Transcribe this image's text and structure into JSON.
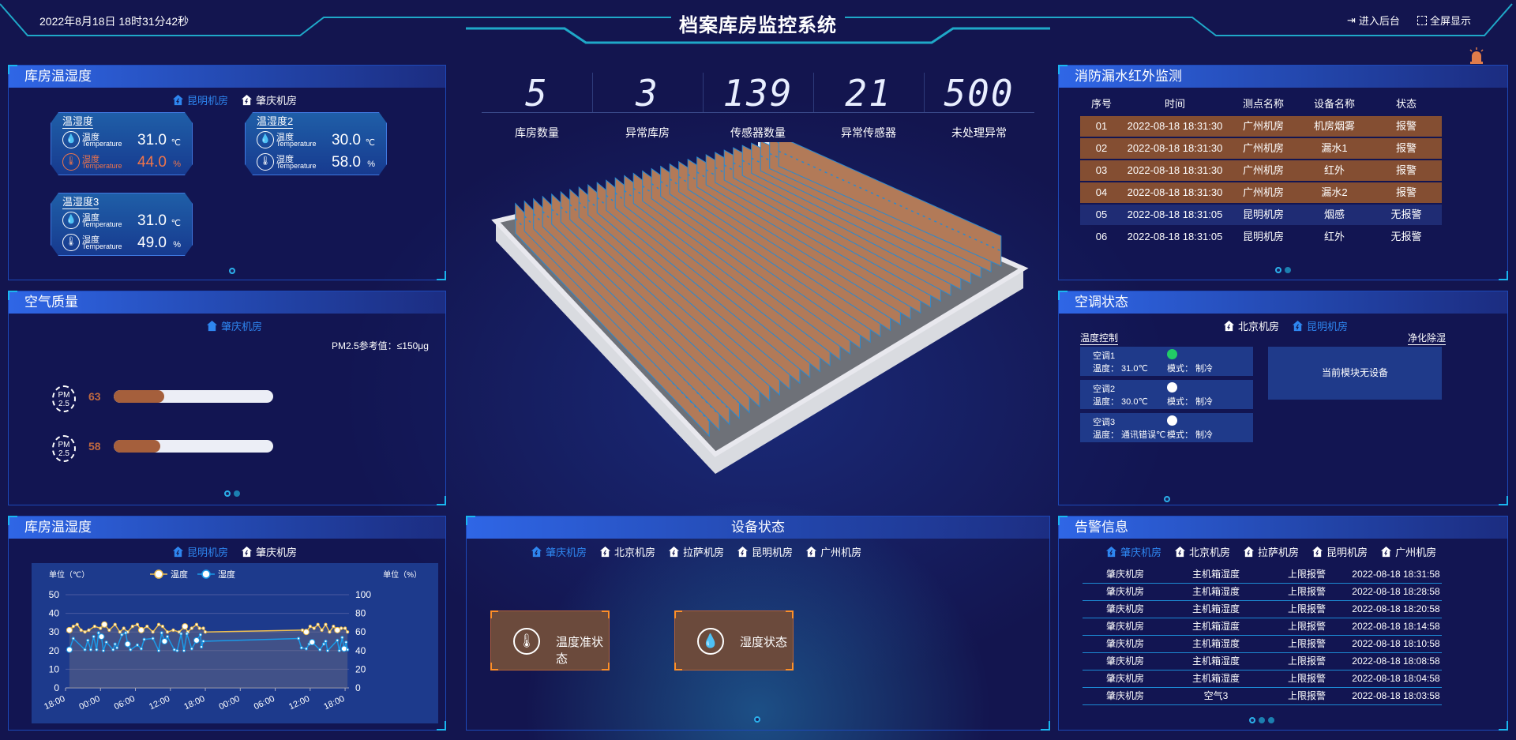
{
  "header": {
    "datetime": "2022年8月18日 18时31分42秒",
    "title": "档案库房监控系统",
    "backend_label": "进入后台",
    "fullscreen_label": "全屏显示"
  },
  "colors": {
    "background": "#13154f",
    "panel_header": "#2f66e6",
    "accent_blue": "#2e86f0",
    "alarm_row": "#844e32",
    "warning_text": "#f0744a",
    "temp_line": "#f0c050",
    "humidity_line": "#1a9ae8",
    "online": "#22cc66"
  },
  "temp_humidity": {
    "title": "库房温湿度",
    "tabs": [
      {
        "label": "昆明机房",
        "active": true
      },
      {
        "label": "肇庆机房",
        "active": false
      }
    ],
    "cards": [
      {
        "name": "温湿度",
        "rows": [
          {
            "label": "温度",
            "sub": "Temperature",
            "value": "31.0",
            "unit": "℃",
            "warn": false,
            "icon": "water-drop-icon"
          },
          {
            "label": "湿度",
            "sub": "Temperature",
            "value": "44.0",
            "unit": "%",
            "warn": true,
            "icon": "thermometer-icon"
          }
        ]
      },
      {
        "name": "温湿度2",
        "rows": [
          {
            "label": "温度",
            "sub": "Temperature",
            "value": "30.0",
            "unit": "℃",
            "warn": false,
            "icon": "water-drop-icon"
          },
          {
            "label": "湿度",
            "sub": "Temperature",
            "value": "58.0",
            "unit": "%",
            "warn": false,
            "icon": "thermometer-icon"
          }
        ]
      },
      {
        "name": "温湿度3",
        "rows": [
          {
            "label": "温度",
            "sub": "Temperature",
            "value": "31.0",
            "unit": "℃",
            "warn": false,
            "icon": "water-drop-icon"
          },
          {
            "label": "湿度",
            "sub": "Temperature",
            "value": "49.0",
            "unit": "%",
            "warn": false,
            "icon": "thermometer-icon"
          }
        ]
      }
    ]
  },
  "air_quality": {
    "title": "空气质量",
    "tab": "肇庆机房",
    "reference": "PM2.5参考值：≤150μg",
    "icon_text": [
      "PM",
      "2.5"
    ],
    "readings": [
      {
        "value": 63
      },
      {
        "value": 58
      }
    ]
  },
  "stats": [
    {
      "value": "5",
      "label": "库房数量"
    },
    {
      "value": "3",
      "label": "异常库房"
    },
    {
      "value": "139",
      "label": "传感器数量"
    },
    {
      "value": "21",
      "label": "异常传感器"
    },
    {
      "value": "500",
      "label": "未处理异常"
    }
  ],
  "fire_monitor": {
    "title": "消防漏水红外监测",
    "columns": [
      "序号",
      "时间",
      "测点名称",
      "设备名称",
      "状态"
    ],
    "rows": [
      {
        "cells": [
          "01",
          "2022-08-18 18:31:30",
          "广州机房",
          "机房烟雾",
          "报警"
        ],
        "alarm": true
      },
      {
        "cells": [
          "02",
          "2022-08-18 18:31:30",
          "广州机房",
          "漏水1",
          "报警"
        ],
        "alarm": true
      },
      {
        "cells": [
          "03",
          "2022-08-18 18:31:30",
          "广州机房",
          "红外",
          "报警"
        ],
        "alarm": true
      },
      {
        "cells": [
          "04",
          "2022-08-18 18:31:30",
          "广州机房",
          "漏水2",
          "报警"
        ],
        "alarm": true
      },
      {
        "cells": [
          "05",
          "2022-08-18 18:31:05",
          "昆明机房",
          "烟感",
          "无报警"
        ],
        "alarm": false
      },
      {
        "cells": [
          "06",
          "2022-08-18 18:31:05",
          "昆明机房",
          "红外",
          "无报警"
        ],
        "alarm": false
      }
    ]
  },
  "ac_status": {
    "title": "空调状态",
    "tabs": [
      {
        "label": "北京机房",
        "active": false
      },
      {
        "label": "昆明机房",
        "active": true
      }
    ],
    "temp_control_label": "温度控制",
    "purify_label": "净化除湿",
    "no_device": "当前模块无设备",
    "units": [
      {
        "name": "空调1",
        "temp": "温度：  31.0℃",
        "mode": "模式：  制冷",
        "status": "online"
      },
      {
        "name": "空调2",
        "temp": "温度：  30.0℃",
        "mode": "模式：  制冷",
        "status": "offline"
      },
      {
        "name": "空调3",
        "temp": "温度：  通讯错误℃",
        "mode": "模式：  制冷",
        "status": "offline"
      }
    ]
  },
  "trend": {
    "title": "库房温湿度",
    "tabs": [
      {
        "label": "昆明机房",
        "active": true
      },
      {
        "label": "肇庆机房",
        "active": false
      }
    ]
  },
  "chart_data": {
    "type": "line",
    "left_axis_label": "单位（℃）",
    "right_axis_label": "单位（%）",
    "ylim_left": [
      0,
      50
    ],
    "yticks_left": [
      0,
      10,
      20,
      30,
      40,
      50
    ],
    "ylim_right": [
      0,
      100
    ],
    "yticks_right": [
      0,
      20,
      40,
      60,
      80,
      100
    ],
    "xlim": [
      "2022-08-16 18:00",
      "2022-08-18 18:40"
    ],
    "xticks": [
      "18:00",
      "00:00",
      "06:00",
      "12:00",
      "18:00",
      "00:00",
      "06:00",
      "12:00",
      "18:00"
    ],
    "grid": true,
    "legend": "top-center",
    "series": [
      {
        "name": "温度",
        "axis": "left",
        "points": [
          [
            "2022-08-16 18:40",
            31
          ],
          [
            "2022-08-16 19:20",
            33
          ],
          [
            "2022-08-16 20:00",
            34
          ],
          [
            "2022-08-16 20:40",
            31
          ],
          [
            "2022-08-16 21:20",
            30
          ],
          [
            "2022-08-16 22:00",
            31
          ],
          [
            "2022-08-16 23:00",
            33
          ],
          [
            "2022-08-17 00:00",
            32
          ],
          [
            "2022-08-17 00:40",
            34
          ],
          [
            "2022-08-17 01:30",
            31
          ],
          [
            "2022-08-17 02:30",
            34
          ],
          [
            "2022-08-17 03:20",
            30
          ],
          [
            "2022-08-17 04:00",
            32
          ],
          [
            "2022-08-17 04:40",
            30
          ],
          [
            "2022-08-17 05:30",
            33
          ],
          [
            "2022-08-17 06:20",
            34
          ],
          [
            "2022-08-17 07:00",
            31
          ],
          [
            "2022-08-17 08:00",
            33
          ],
          [
            "2022-08-17 09:00",
            30
          ],
          [
            "2022-08-17 10:00",
            34
          ],
          [
            "2022-08-17 10:40",
            33
          ],
          [
            "2022-08-17 11:30",
            30
          ],
          [
            "2022-08-17 12:30",
            31
          ],
          [
            "2022-08-17 13:30",
            30
          ],
          [
            "2022-08-17 14:30",
            33
          ],
          [
            "2022-08-17 15:00",
            30
          ],
          [
            "2022-08-17 15:40",
            32
          ],
          [
            "2022-08-17 16:30",
            34
          ],
          [
            "2022-08-17 17:00",
            32
          ],
          [
            "2022-08-17 17:40",
            32
          ],
          [
            "2022-08-17 18:00",
            30
          ],
          [
            "2022-08-18 10:40",
            31
          ],
          [
            "2022-08-18 11:20",
            30
          ],
          [
            "2022-08-18 12:00",
            33
          ],
          [
            "2022-08-18 12:40",
            32
          ],
          [
            "2022-08-18 13:20",
            34
          ],
          [
            "2022-08-18 14:00",
            31
          ],
          [
            "2022-08-18 14:40",
            34
          ],
          [
            "2022-08-18 15:20",
            30
          ],
          [
            "2022-08-18 16:00",
            33
          ],
          [
            "2022-08-18 16:40",
            31
          ],
          [
            "2022-08-18 17:20",
            32
          ],
          [
            "2022-08-18 18:00",
            32
          ],
          [
            "2022-08-18 18:25",
            30
          ]
        ]
      },
      {
        "name": "湿度",
        "axis": "right",
        "points": [
          [
            "2022-08-16 18:40",
            41
          ],
          [
            "2022-08-16 19:20",
            53
          ],
          [
            "2022-08-16 21:20",
            41
          ],
          [
            "2022-08-16 21:50",
            51
          ],
          [
            "2022-08-16 22:20",
            41
          ],
          [
            "2022-08-16 22:50",
            55
          ],
          [
            "2022-08-16 23:20",
            41
          ],
          [
            "2022-08-16 23:40",
            59
          ],
          [
            "2022-08-17 00:10",
            55
          ],
          [
            "2022-08-17 00:30",
            40
          ],
          [
            "2022-08-17 01:00",
            49
          ],
          [
            "2022-08-17 02:10",
            41
          ],
          [
            "2022-08-17 02:30",
            47
          ],
          [
            "2022-08-17 02:50",
            43
          ],
          [
            "2022-08-17 03:40",
            57
          ],
          [
            "2022-08-17 04:20",
            59
          ],
          [
            "2022-08-17 04:40",
            47
          ],
          [
            "2022-08-17 05:10",
            41
          ],
          [
            "2022-08-17 06:20",
            46
          ],
          [
            "2022-08-17 07:00",
            42
          ],
          [
            "2022-08-17 07:30",
            52
          ],
          [
            "2022-08-17 09:00",
            53
          ],
          [
            "2022-08-17 10:00",
            40
          ],
          [
            "2022-08-17 10:30",
            59
          ],
          [
            "2022-08-17 11:00",
            50
          ],
          [
            "2022-08-17 11:30",
            55
          ],
          [
            "2022-08-17 12:40",
            41
          ],
          [
            "2022-08-17 13:10",
            40
          ],
          [
            "2022-08-17 13:50",
            58
          ],
          [
            "2022-08-17 14:20",
            40
          ],
          [
            "2022-08-17 14:50",
            58
          ],
          [
            "2022-08-17 15:40",
            42
          ],
          [
            "2022-08-17 16:30",
            51
          ],
          [
            "2022-08-17 17:10",
            57
          ],
          [
            "2022-08-17 17:20",
            44
          ],
          [
            "2022-08-17 17:40",
            50
          ],
          [
            "2022-08-18 10:00",
            53
          ],
          [
            "2022-08-18 10:30",
            43
          ],
          [
            "2022-08-18 11:20",
            42
          ],
          [
            "2022-08-18 11:50",
            47
          ],
          [
            "2022-08-18 12:20",
            49
          ],
          [
            "2022-08-18 13:40",
            41
          ],
          [
            "2022-08-18 14:20",
            47
          ],
          [
            "2022-08-18 14:40",
            50
          ],
          [
            "2022-08-18 15:00",
            40
          ],
          [
            "2022-08-18 16:40",
            51
          ],
          [
            "2022-08-18 17:00",
            40
          ],
          [
            "2022-08-18 17:30",
            54
          ],
          [
            "2022-08-18 17:50",
            42
          ],
          [
            "2022-08-18 18:10",
            49
          ],
          [
            "2022-08-18 18:25",
            41
          ]
        ]
      }
    ]
  },
  "device_status": {
    "title": "设备状态",
    "tabs": [
      {
        "label": "肇庆机房",
        "active": true
      },
      {
        "label": "北京机房",
        "active": false
      },
      {
        "label": "拉萨机房",
        "active": false
      },
      {
        "label": "昆明机房",
        "active": false
      },
      {
        "label": "广州机房",
        "active": false
      }
    ],
    "buttons": [
      {
        "label": "温度准状态",
        "icon": "thermometer-icon"
      },
      {
        "label": "湿度状态",
        "icon": "water-drops-icon"
      }
    ]
  },
  "alarms": {
    "title": "告警信息",
    "tabs": [
      {
        "label": "肇庆机房",
        "active": true
      },
      {
        "label": "北京机房",
        "active": false
      },
      {
        "label": "拉萨机房",
        "active": false
      },
      {
        "label": "昆明机房",
        "active": false
      },
      {
        "label": "广州机房",
        "active": false
      }
    ],
    "rows": [
      [
        "肇庆机房",
        "主机箱湿度",
        "上限报警",
        "2022-08-18 18:31:58"
      ],
      [
        "肇庆机房",
        "主机箱湿度",
        "上限报警",
        "2022-08-18 18:28:58"
      ],
      [
        "肇庆机房",
        "主机箱湿度",
        "上限报警",
        "2022-08-18 18:20:58"
      ],
      [
        "肇庆机房",
        "主机箱湿度",
        "上限报警",
        "2022-08-18 18:14:58"
      ],
      [
        "肇庆机房",
        "主机箱湿度",
        "上限报警",
        "2022-08-18 18:10:58"
      ],
      [
        "肇庆机房",
        "主机箱湿度",
        "上限报警",
        "2022-08-18 18:08:58"
      ],
      [
        "肇庆机房",
        "主机箱湿度",
        "上限报警",
        "2022-08-18 18:04:58"
      ],
      [
        "肇庆机房",
        "空气3",
        "上限报警",
        "2022-08-18 18:03:58"
      ]
    ]
  }
}
